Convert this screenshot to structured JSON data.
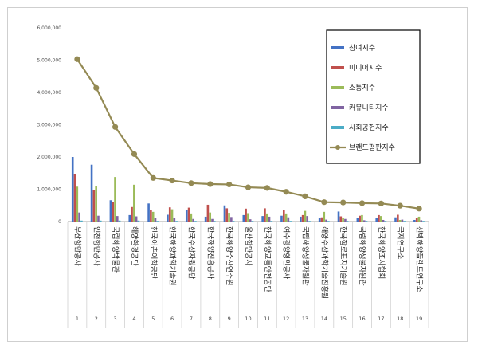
{
  "chart_data": {
    "type": "bar",
    "categories": [
      "부산항만공사",
      "인천항만공사",
      "국립해양박물관",
      "해양환경공단",
      "한국어촌어항공단",
      "한국해양과학기술원",
      "한국수산자원공단",
      "한국해양진흥공사",
      "한국해양수산연수원",
      "울산항만공사",
      "한국해양교통안전공단",
      "여수광양항만공사",
      "국립해양생물자원관",
      "해양수산과학기술진흥원",
      "한국항로표지기술원",
      "국립해양생물자원관",
      "한국해양조사협회",
      "극지연구소",
      "선박해양플랜트연구소"
    ],
    "numbers": [
      "1",
      "2",
      "3",
      "4",
      "5",
      "6",
      "7",
      "8",
      "9",
      "10",
      "11",
      "12",
      "13",
      "14",
      "15",
      "16",
      "17",
      "18",
      "19"
    ],
    "series": [
      {
        "name": "참여지수",
        "kind": "bar",
        "color": "#4472c4",
        "values": [
          2000000,
          1760000,
          660000,
          200000,
          560000,
          210000,
          360000,
          150000,
          500000,
          200000,
          170000,
          180000,
          150000,
          100000,
          310000,
          100000,
          100000,
          130000,
          50000
        ]
      },
      {
        "name": "미디어지수",
        "kind": "bar",
        "color": "#c0504d",
        "values": [
          1480000,
          980000,
          600000,
          450000,
          350000,
          440000,
          430000,
          520000,
          410000,
          400000,
          410000,
          350000,
          200000,
          130000,
          160000,
          180000,
          200000,
          210000,
          120000
        ]
      },
      {
        "name": "소통지수",
        "kind": "bar",
        "color": "#9bbb59",
        "values": [
          1080000,
          1100000,
          1380000,
          1140000,
          300000,
          380000,
          250000,
          280000,
          270000,
          260000,
          250000,
          250000,
          330000,
          300000,
          120000,
          200000,
          170000,
          50000,
          150000
        ]
      },
      {
        "name": "커뮤니티지수",
        "kind": "bar",
        "color": "#8064a2",
        "values": [
          280000,
          180000,
          170000,
          160000,
          100000,
          100000,
          80000,
          80000,
          140000,
          70000,
          150000,
          130000,
          170000,
          60000,
          80000,
          40000,
          50000,
          60000,
          40000
        ]
      },
      {
        "name": "사회공헌지수",
        "kind": "bar",
        "color": "#4bacc6",
        "values": [
          30000,
          30000,
          30000,
          30000,
          20000,
          20000,
          20000,
          20000,
          20000,
          20000,
          20000,
          20000,
          20000,
          20000,
          20000,
          20000,
          20000,
          20000,
          20000
        ]
      },
      {
        "name": "브랜드평판지수",
        "kind": "line",
        "color": "#948a54",
        "values": [
          5030000,
          4140000,
          2930000,
          2090000,
          1350000,
          1270000,
          1190000,
          1160000,
          1150000,
          1060000,
          1040000,
          920000,
          780000,
          600000,
          590000,
          570000,
          560000,
          490000,
          400000
        ]
      }
    ],
    "y_ticks": [
      "0",
      "1,000,000",
      "2,000,000",
      "3,000,000",
      "4,000,000",
      "5,000,000",
      "6,000,000"
    ],
    "ylim": [
      0,
      6000000
    ],
    "grid": false,
    "legend_position": "top-right"
  }
}
